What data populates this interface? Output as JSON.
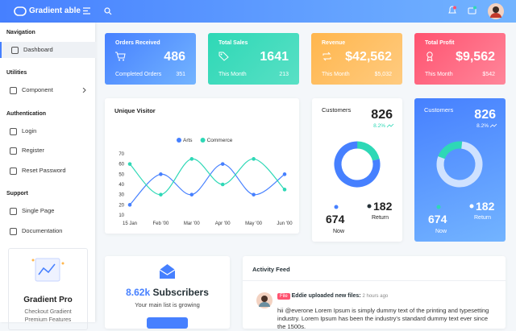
{
  "header": {
    "brand": "Gradient able"
  },
  "sidebar": {
    "sections": [
      {
        "title": "Navigation",
        "items": [
          "Dashboard"
        ]
      },
      {
        "title": "Utilities",
        "items": [
          "Component"
        ]
      },
      {
        "title": "Authentication",
        "items": [
          "Login",
          "Register",
          "Reset Password"
        ]
      },
      {
        "title": "Support",
        "items": [
          "Single Page",
          "Documentation"
        ]
      }
    ],
    "promo": {
      "title": "Gradient Pro",
      "text": "Checkout Gradient Premium Features"
    }
  },
  "stats": [
    {
      "title": "Orders Received",
      "value": "486",
      "label": "Completed Orders",
      "sub": "351"
    },
    {
      "title": "Total Sales",
      "value": "1641",
      "label": "This Month",
      "sub": "213"
    },
    {
      "title": "Revenue",
      "value": "$42,562",
      "label": "This Month",
      "sub": "$5,032"
    },
    {
      "title": "Total Profit",
      "value": "$9,562",
      "label": "This Month",
      "sub": "$542"
    }
  ],
  "chart_data": {
    "type": "line",
    "title": "Unique Visitor",
    "categories": [
      "15 Jan",
      "Feb '00",
      "Mar '00",
      "Apr '00",
      "May '00",
      "Jun '00"
    ],
    "series": [
      {
        "name": "Arts",
        "color": "#4680ff",
        "values": [
          20,
          50,
          30,
          60,
          30,
          50
        ]
      },
      {
        "name": "Commerce",
        "color": "#2ed8b6",
        "values": [
          60,
          30,
          65,
          40,
          65,
          35
        ]
      }
    ],
    "ylim": [
      10,
      70
    ],
    "yticks": [
      10,
      20,
      30,
      40,
      50,
      60,
      70
    ]
  },
  "customers": [
    {
      "title": "Customers",
      "total": "826",
      "change": "8.2%",
      "now": 674,
      "now_label": "Now",
      "return": 182,
      "return_label": "Return"
    },
    {
      "title": "Customers",
      "total": "826",
      "change": "8.2%",
      "now": 674,
      "now_label": "Now",
      "return": 182,
      "return_label": "Return"
    }
  ],
  "subscribers": {
    "value": "8.62k",
    "label": "Subscribers",
    "text": "Your main list is growing"
  },
  "activity": {
    "title": "Activity Feed",
    "items": [
      {
        "badge": "File",
        "user": "Eddie uploaded new files:",
        "time": "2 hours ago",
        "mention": "hii @everone",
        "text": "Lorem Ipsum is simply dummy text of the printing and typesetting industry. Lorem Ipsum has been the industry's standard dummy text ever since the 1500s."
      }
    ]
  }
}
